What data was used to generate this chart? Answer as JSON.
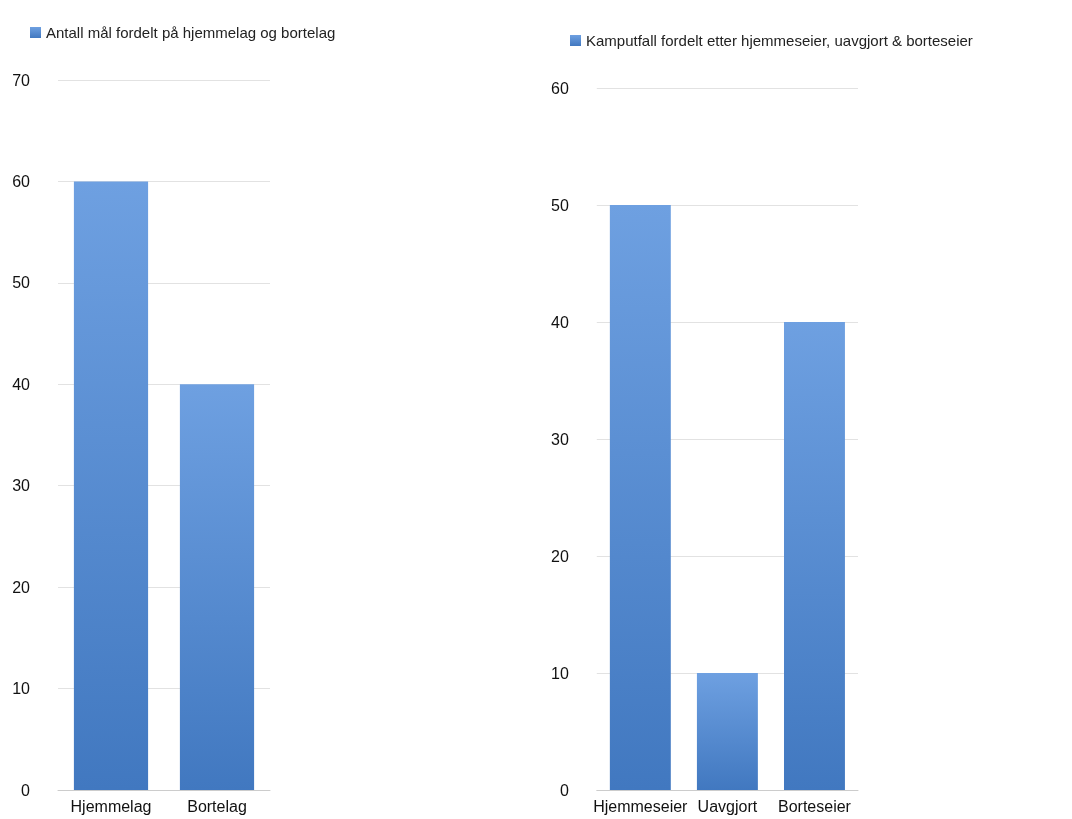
{
  "chart_data": [
    {
      "type": "bar",
      "categories": [
        "Hjemmelag",
        "Bortelag"
      ],
      "series": [
        {
          "name": "Antall mål fordelt på hjemmelag og bortelag",
          "color": "#4a88da",
          "values": [
            60,
            40
          ]
        }
      ],
      "ylim": [
        0,
        70
      ],
      "yticks": [
        0,
        10,
        20,
        30,
        40,
        50,
        60,
        70
      ],
      "grid": "y",
      "legend": "top"
    },
    {
      "type": "bar",
      "categories": [
        "Hjemmeseier",
        "Uavgjort",
        "Borteseier"
      ],
      "series": [
        {
          "name": "Kamputfall fordelt etter hjemmeseier, uavgjort & borteseier",
          "color": "#4a88da",
          "values": [
            50,
            10,
            40
          ]
        }
      ],
      "ylim": [
        0,
        60
      ],
      "yticks": [
        0,
        10,
        20,
        30,
        40,
        50,
        60
      ],
      "grid": "y",
      "legend": "top"
    }
  ]
}
